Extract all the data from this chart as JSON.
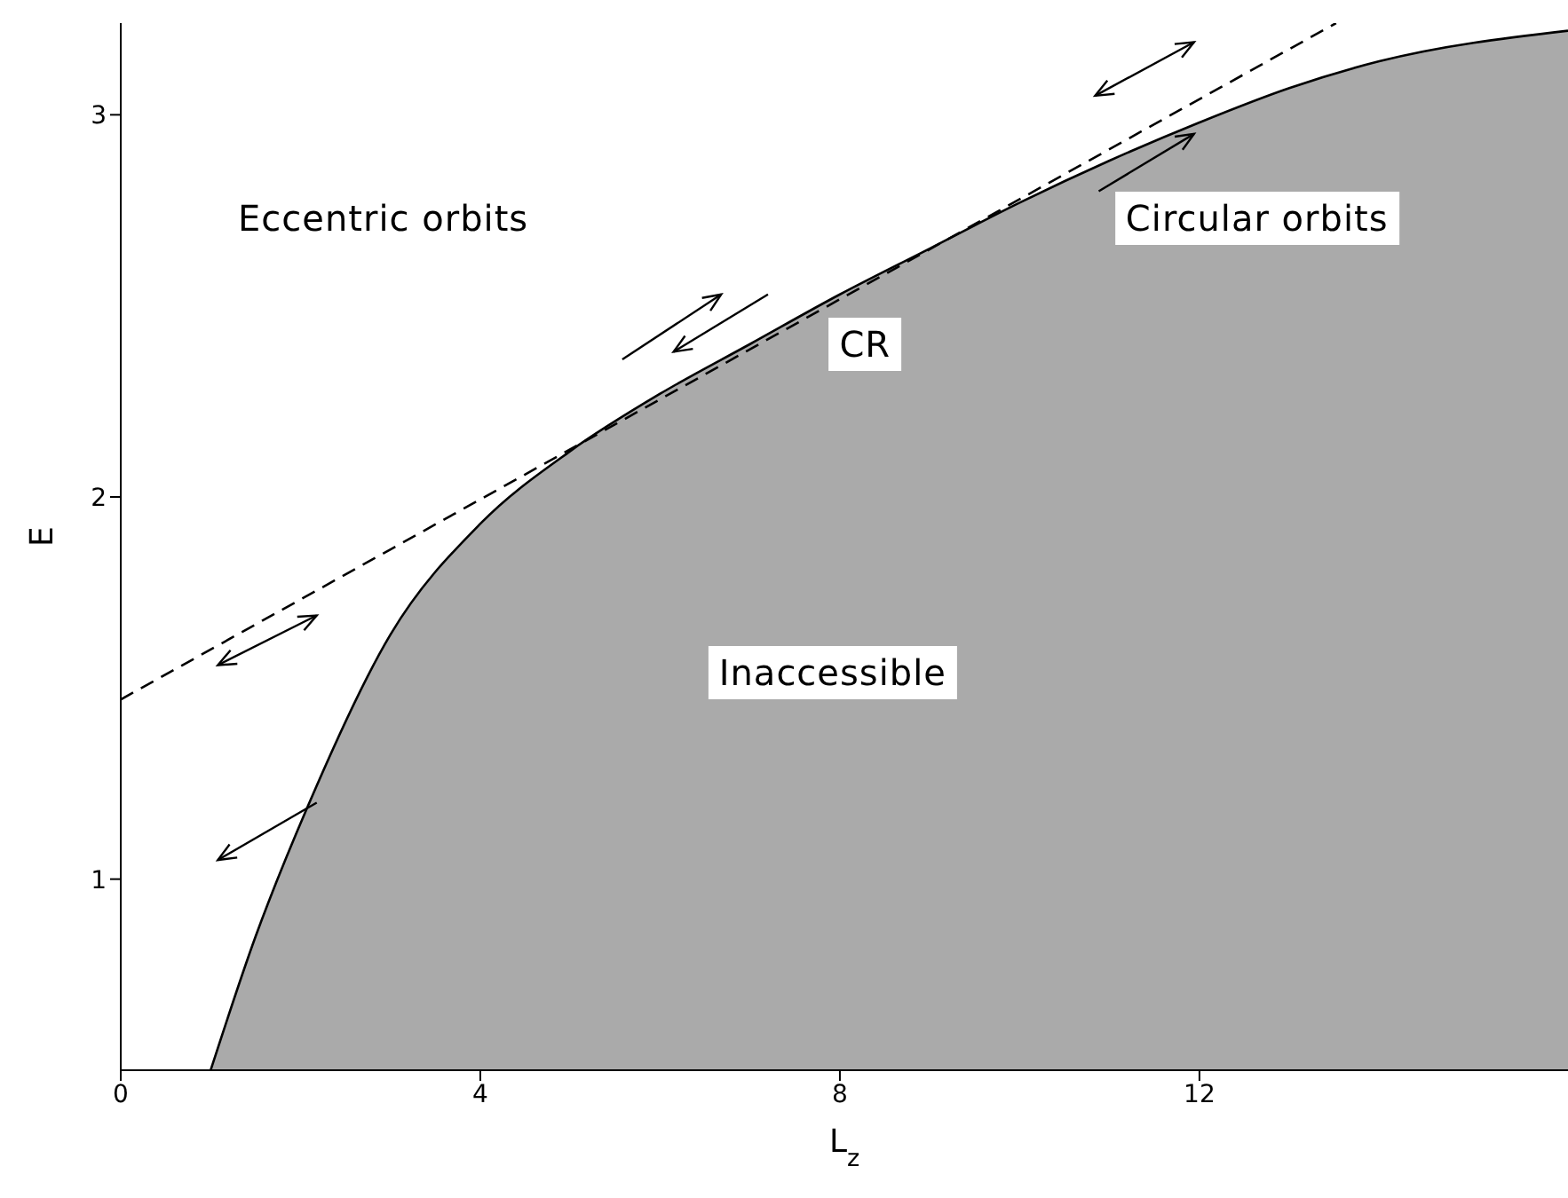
{
  "chart_data": {
    "type": "area",
    "xlabel": "L$_{z}$",
    "ylabel": "E",
    "xlim": [
      0,
      16.1
    ],
    "ylim": [
      0.5,
      3.24
    ],
    "xticks": [
      0,
      4,
      8,
      12
    ],
    "yticks": [
      1,
      2,
      3
    ],
    "grid": false,
    "series": [
      {
        "color": "#aaaaaa",
        "x": [
          1,
          1.5,
          2.08,
          3,
          4,
          5,
          6,
          7,
          8,
          9,
          10,
          11,
          12,
          13,
          14,
          16.1
        ],
        "values": [
          0.5,
          0.85,
          1.19,
          1.64,
          1.93,
          2.12,
          2.27,
          2.4,
          2.53,
          2.65,
          2.77,
          2.88,
          2.98,
          3.07,
          3.14,
          3.22
        ]
      },
      {
        "type": "line",
        "color": "#000000",
        "line_style": "dashed",
        "x": [
          0,
          13.52
        ],
        "values": [
          1.47,
          3.24
        ]
      }
    ],
    "annotations": [
      "Eccentric orbits",
      "Circular orbits",
      "CR",
      "Inaccessible"
    ]
  }
}
